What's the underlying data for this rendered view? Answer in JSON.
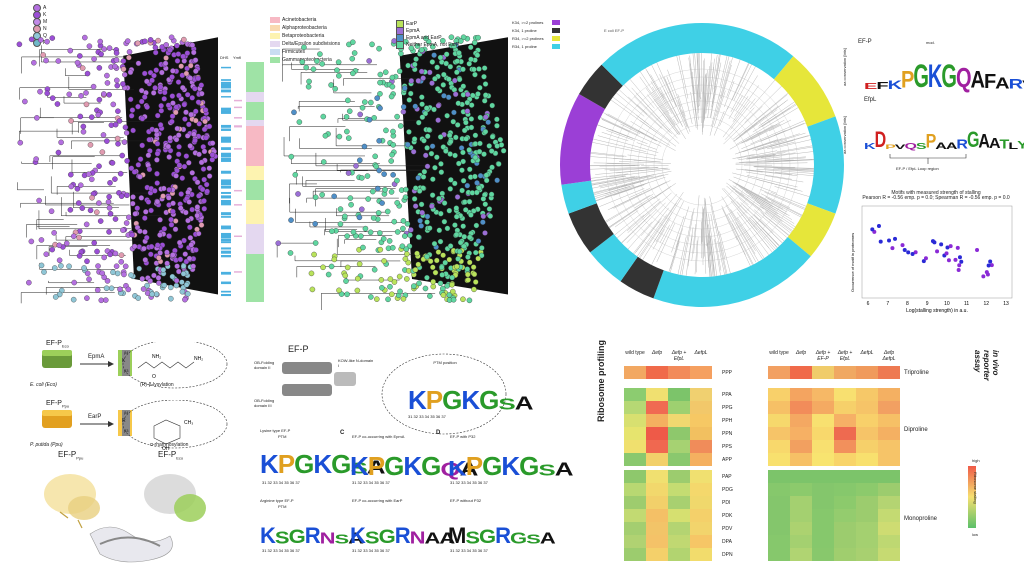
{
  "panelA": {
    "legend_labels": [
      "A",
      "K",
      "M",
      "N",
      "Q",
      "R"
    ],
    "legend_colors": [
      "#b46fe0",
      "#9b4fd6",
      "#c28ae8",
      "#e09bb0",
      "#8fc6d6",
      "#6fb8c8"
    ],
    "col_dhs": "DHS",
    "col_ymfl": "Ymfl",
    "taxa": [
      "Acinetobacteria",
      "Alphaproteobacteria",
      "Betaproteobacteria",
      "Delta/Epsilon subdivisions",
      "Firmicutes",
      "Gammaproteobacteria"
    ],
    "taxa_colors": [
      "#f7b9c4",
      "#f9d9b0",
      "#fdf3b0",
      "#e4d8f0",
      "#c9ddf2",
      "#9fe3a6"
    ],
    "earp_legend": [
      "EarP",
      "EpmA",
      "EpmA and EarP",
      "Neither EpmA, not EarP"
    ],
    "earp_colors": [
      "#b9e35b",
      "#9b6fd6",
      "#4f8fc7",
      "#5fd6a0"
    ]
  },
  "panelB": {
    "legend": [
      "K34, >=2 prolines",
      "K34, 1 proline",
      "R34, >=2 prolines",
      "R34, 1 proline"
    ],
    "legend_colors": [
      "#9b3fd6",
      "#333",
      "#e6e63a",
      "#3fd0e6"
    ],
    "label": "E coli EF-P"
  },
  "panelC": {
    "efp_label": "EF-P",
    "efp_mod": "mod.",
    "efp_seq": "EFKPGKGQAFARVKLR",
    "efpl_label": "EfpL",
    "efpl_seq": "KDPVQSPAARGAATLYKMR",
    "axis_label": "aa conservation [bits]",
    "region_label": "EF-P / EfpL Loop region"
  },
  "panelD": {
    "title": "Motifs with measured strength of stalling",
    "subtitle": "Pearson R = -0.56 emp. p = 0.0; Spearman R = -0.56 emp. p = 0.0",
    "xlabel": "Log(stalling strength) in a.u.",
    "ylabel": "Occurrence of motif in proteomes",
    "xticks": [
      "6",
      "7",
      "8",
      "9",
      "10",
      "11",
      "12",
      "13"
    ]
  },
  "panelE": {
    "efp_eco": "EF-P",
    "eco_sub": "Eco",
    "epma": "EpmA",
    "eco_name": "E. coli (Eco)",
    "eco_mod": "(R)-β-lysylation",
    "efp_ppu": "EF-P",
    "ppu_sub": "Ppu",
    "earp": "EarP",
    "ppu_name": "P. putida (Ppu)",
    "ppu_mod": "α-rhamnosylation",
    "res_k": "K",
    "res_r": "R",
    "b4": "β4",
    "b3": "β3",
    "struct_a": "EF-P",
    "struct_a_sub": "Ppu",
    "struct_b": "EF-P",
    "struct_b_sub": "Eco"
  },
  "panelF": {
    "title": "EF-P",
    "domains": [
      "OB-Folding domain II",
      "KOW-like N-domain I",
      "OB-Folding domain III"
    ],
    "ptm": "PTM position",
    "prob": "Probability",
    "main_logo": "KPGKGSA",
    "positions": [
      "31",
      "32",
      "33",
      "34",
      "35",
      "36",
      "37"
    ],
    "lysine_title": "Lysine type EF-P",
    "lysine_ptm": "PTM",
    "lysine_logo": "KPGKGSA",
    "arginine_title": "Arginine type EF-P",
    "arginine_ptm": "PTM",
    "arginine_logo": "KSGRNSA",
    "c_label": "C",
    "c_title": "EF-P co-occurring with EpmA",
    "c_logo": "KPGKGQA",
    "c2_title": "EF-P co-occurring with EarP",
    "c2_logo": "KSGRNAA",
    "d_label": "D",
    "d_title": "EF-P with P32",
    "d_logo": "KPGKGSA",
    "d2_title": "EF-P without P32",
    "d2_logo": "MSGRGSA",
    "yticks": [
      "1.00",
      "0.75",
      "0.50",
      "0.25",
      "0.00"
    ]
  },
  "panelG": {
    "left_title": "Ribosome profiling",
    "right_title": "in vivo reporter assay",
    "left_cols": [
      "wild type",
      "Δefp",
      "Δefp + EfpL",
      "ΔefpL"
    ],
    "right_cols": [
      "wild type",
      "Δefp",
      "Δefp + EF-P",
      "Δefp + EfpL",
      "ΔefpL",
      "Δefp ΔefpL"
    ],
    "tri_rows": [
      "PPP"
    ],
    "di_rows": [
      "PPA",
      "PPG",
      "PPH",
      "PPN",
      "PPS",
      "APP"
    ],
    "mono_rows": [
      "PAP",
      "PDG",
      "PDI",
      "PDK",
      "PDV",
      "DPA",
      "DPN"
    ],
    "groups": [
      "Triproline",
      "Diproline",
      "Monoproline"
    ],
    "scale_high": "high",
    "scale_low": "low",
    "scale_title": "Ribosome stalling",
    "tri_left": [
      [
        "#f2a862",
        "#f06a4a",
        "#f28a5a",
        "#f5a060"
      ]
    ],
    "tri_right": [
      [
        "#f2a062",
        "#f06a4a",
        "#f0cc6a",
        "#f0a862",
        "#f09a5c",
        "#ee7a52"
      ]
    ],
    "di_left": [
      [
        "#8ccc70",
        "#f0e070",
        "#7cc46a",
        "#f0d070"
      ],
      [
        "#b6d874",
        "#f06a52",
        "#9ed070",
        "#f2c86a"
      ],
      [
        "#d8e070",
        "#f4b060",
        "#f0d870",
        "#f6c864"
      ],
      [
        "#e6e46e",
        "#ee5a48",
        "#8ec86c",
        "#f2c060"
      ],
      [
        "#f0e06e",
        "#f06850",
        "#a6d272",
        "#f08c5a"
      ],
      [
        "#8ac86e",
        "#f2d06a",
        "#8ac86e",
        "#f4b060"
      ]
    ],
    "di_right": [
      [
        "#f8d06a",
        "#f4a460",
        "#f6b866",
        "#f8e070",
        "#f6c868",
        "#f4b062"
      ],
      [
        "#f6c066",
        "#f28c5a",
        "#f4aa62",
        "#f6d06a",
        "#f6c468",
        "#f2a062"
      ],
      [
        "#f6d86c",
        "#f4a862",
        "#f8e070",
        "#f6b066",
        "#f8d06a",
        "#f6c066"
      ],
      [
        "#f6c468",
        "#f6b064",
        "#f8d86c",
        "#ee6a50",
        "#f6c468",
        "#f4b062"
      ],
      [
        "#f8d86c",
        "#f2a060",
        "#f8e070",
        "#f2905c",
        "#f6d06a",
        "#f6c468"
      ],
      [
        "#f8e06e",
        "#f6c066",
        "#f8e470",
        "#f8d46a",
        "#f8e06e",
        "#f6c468"
      ]
    ],
    "mono_left": [
      [
        "#8ec86c",
        "#f0e070",
        "#9ccc6e",
        "#f0e070"
      ],
      [
        "#b8d872",
        "#f2d86c",
        "#c4dc72",
        "#f4d86c"
      ],
      [
        "#9ecc6e",
        "#f2d06a",
        "#a8d070",
        "#f0d86c"
      ],
      [
        "#c2da72",
        "#f4c066",
        "#d6e070",
        "#f4d06a"
      ],
      [
        "#a4ce70",
        "#f2c468",
        "#b4d472",
        "#f2d46c"
      ],
      [
        "#b0d272",
        "#f4c268",
        "#c0d872",
        "#f6c666"
      ],
      [
        "#9ccc6e",
        "#f4d06a",
        "#b2d470",
        "#f2dc6c"
      ]
    ],
    "mono_right": [
      [
        "#7cc46a",
        "#7cc46a",
        "#7cc46a",
        "#7cc46a",
        "#7cc46a",
        "#7cc46a"
      ],
      [
        "#86c86c",
        "#8cca6c",
        "#84c66c",
        "#86c86c",
        "#8cca6c",
        "#9ccc6e"
      ],
      [
        "#84c66c",
        "#a4d070",
        "#84c66c",
        "#8cca6c",
        "#9ccc6e",
        "#b4d472"
      ],
      [
        "#84c66c",
        "#a4d070",
        "#86c86c",
        "#94cc6e",
        "#9ccc6e",
        "#c4da72"
      ],
      [
        "#84c66c",
        "#acd270",
        "#86c86c",
        "#9ccc6e",
        "#a4d070",
        "#cedc72"
      ],
      [
        "#86c86c",
        "#a4d070",
        "#86c86c",
        "#9ccc6e",
        "#a4d070",
        "#bed872"
      ],
      [
        "#86c86c",
        "#b0d472",
        "#88c86c",
        "#a0ce6e",
        "#a8d070",
        "#c6da72"
      ]
    ]
  }
}
